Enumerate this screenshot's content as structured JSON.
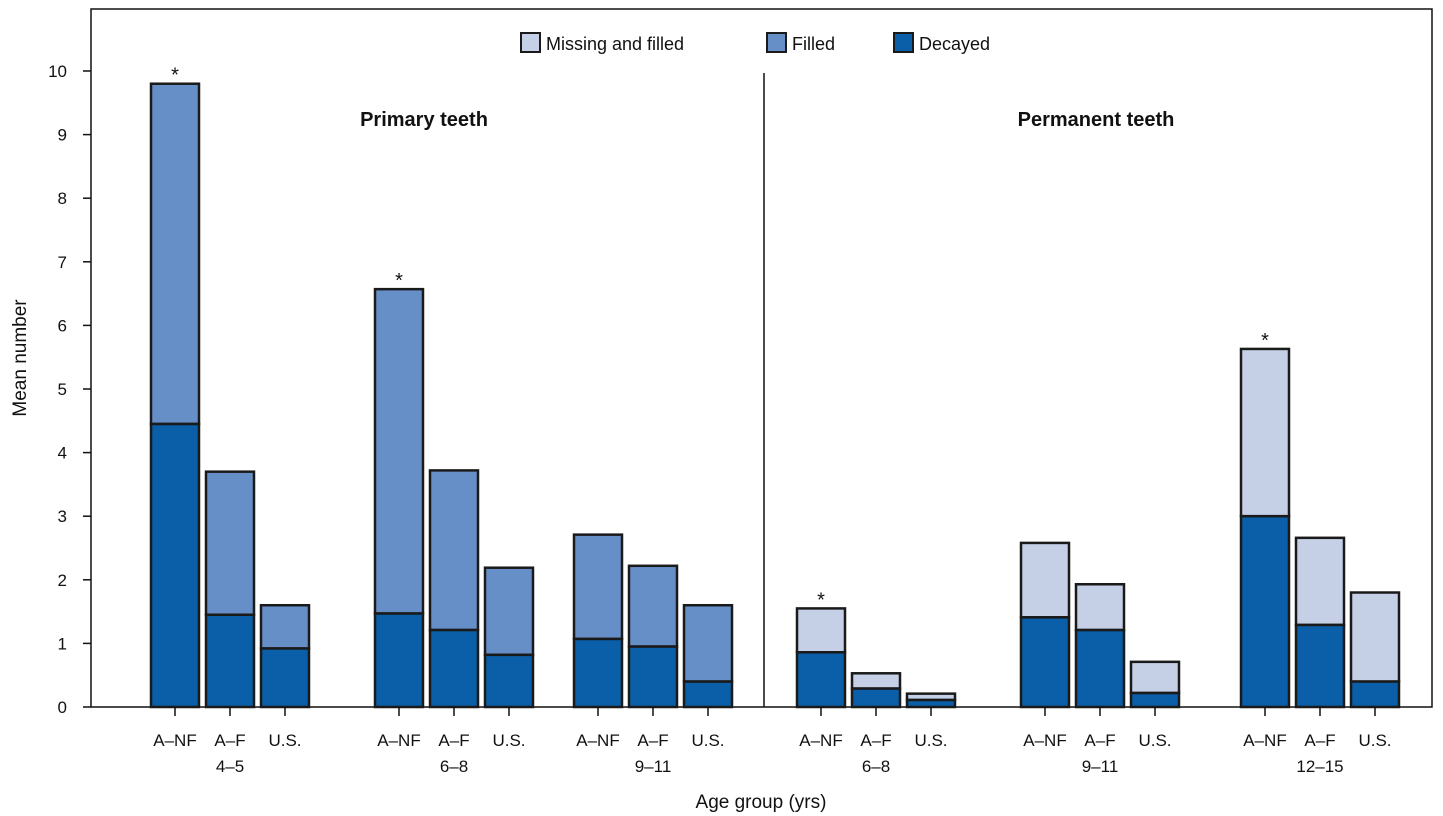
{
  "chart_data": {
    "type": "bar",
    "stacked": true,
    "ylabel": "Mean number",
    "xlabel": "Age group (yrs)",
    "ylim": [
      0,
      10
    ],
    "yticks": [
      "0",
      "1",
      "2",
      "3",
      "4",
      "5",
      "6",
      "7",
      "8",
      "9",
      "10"
    ],
    "grid": false,
    "legend_position": "top-center",
    "legend": [
      {
        "name": "Missing and filled",
        "color": "#c5cfe6"
      },
      {
        "name": "Filled",
        "color": "#678fc7"
      },
      {
        "name": "Decayed",
        "color": "#0b5ea8"
      }
    ],
    "panels": [
      {
        "title": "Primary teeth",
        "top_series": "Filled",
        "groups": [
          {
            "label": "4–5",
            "bars": [
              {
                "category": "A–NF",
                "decayed": 4.45,
                "total": 9.8,
                "star": "*"
              },
              {
                "category": "A–F",
                "decayed": 1.45,
                "total": 3.7,
                "star": ""
              },
              {
                "category": "U.S.",
                "decayed": 0.92,
                "total": 1.6,
                "star": ""
              }
            ]
          },
          {
            "label": "6–8",
            "bars": [
              {
                "category": "A–NF",
                "decayed": 1.47,
                "total": 6.57,
                "star": "*"
              },
              {
                "category": "A–F",
                "decayed": 1.21,
                "total": 3.72,
                "star": ""
              },
              {
                "category": "U.S.",
                "decayed": 0.82,
                "total": 2.19,
                "star": ""
              }
            ]
          },
          {
            "label": "9–11",
            "bars": [
              {
                "category": "A–NF",
                "decayed": 1.07,
                "total": 2.71,
                "star": ""
              },
              {
                "category": "A–F",
                "decayed": 0.95,
                "total": 2.22,
                "star": ""
              },
              {
                "category": "U.S.",
                "decayed": 0.4,
                "total": 1.6,
                "star": ""
              }
            ]
          }
        ]
      },
      {
        "title": "Permanent teeth",
        "top_series": "Missing and filled",
        "groups": [
          {
            "label": "6–8",
            "bars": [
              {
                "category": "A–NF",
                "decayed": 0.86,
                "total": 1.55,
                "star": "*"
              },
              {
                "category": "A–F",
                "decayed": 0.29,
                "total": 0.53,
                "star": ""
              },
              {
                "category": "U.S.",
                "decayed": 0.11,
                "total": 0.21,
                "star": ""
              }
            ]
          },
          {
            "label": "9–11",
            "bars": [
              {
                "category": "A–NF",
                "decayed": 1.41,
                "total": 2.58,
                "star": ""
              },
              {
                "category": "A–F",
                "decayed": 1.21,
                "total": 1.93,
                "star": ""
              },
              {
                "category": "U.S.",
                "decayed": 0.22,
                "total": 0.71,
                "star": ""
              }
            ]
          },
          {
            "label": "12–15",
            "bars": [
              {
                "category": "A–NF",
                "decayed": 3.0,
                "total": 5.63,
                "star": "*"
              },
              {
                "category": "A–F",
                "decayed": 1.29,
                "total": 2.66,
                "star": ""
              },
              {
                "category": "U.S.",
                "decayed": 0.4,
                "total": 1.8,
                "star": ""
              }
            ]
          }
        ]
      }
    ]
  }
}
